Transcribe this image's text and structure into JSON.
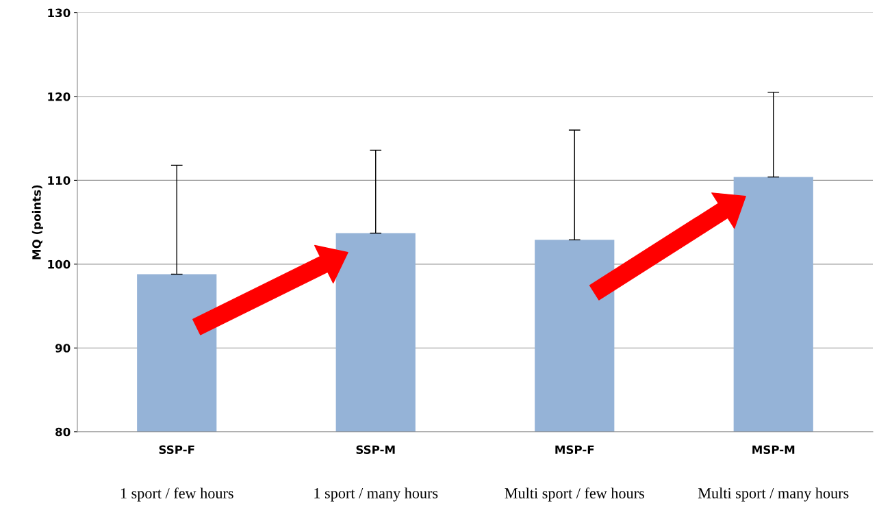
{
  "chart_data": {
    "type": "bar",
    "ylabel": "MQ (points)",
    "categories": [
      "SSP-F",
      "SSP-M",
      "MSP-F",
      "MSP-M"
    ],
    "values": [
      98.8,
      103.7,
      102.9,
      110.4
    ],
    "errors": [
      [
        98.8,
        111.8
      ],
      [
        103.7,
        113.6
      ],
      [
        102.9,
        116.0
      ],
      [
        110.4,
        120.5
      ]
    ],
    "color": "#95b3d7",
    "ylim": [
      80,
      130
    ],
    "yticks": [
      80,
      90,
      100,
      110,
      120,
      130
    ],
    "grid": "y",
    "annotations": [
      "1 sport / few hours",
      "1 sport / many hours",
      "Multi sport / few hours",
      "Multi sport / many hours"
    ]
  }
}
